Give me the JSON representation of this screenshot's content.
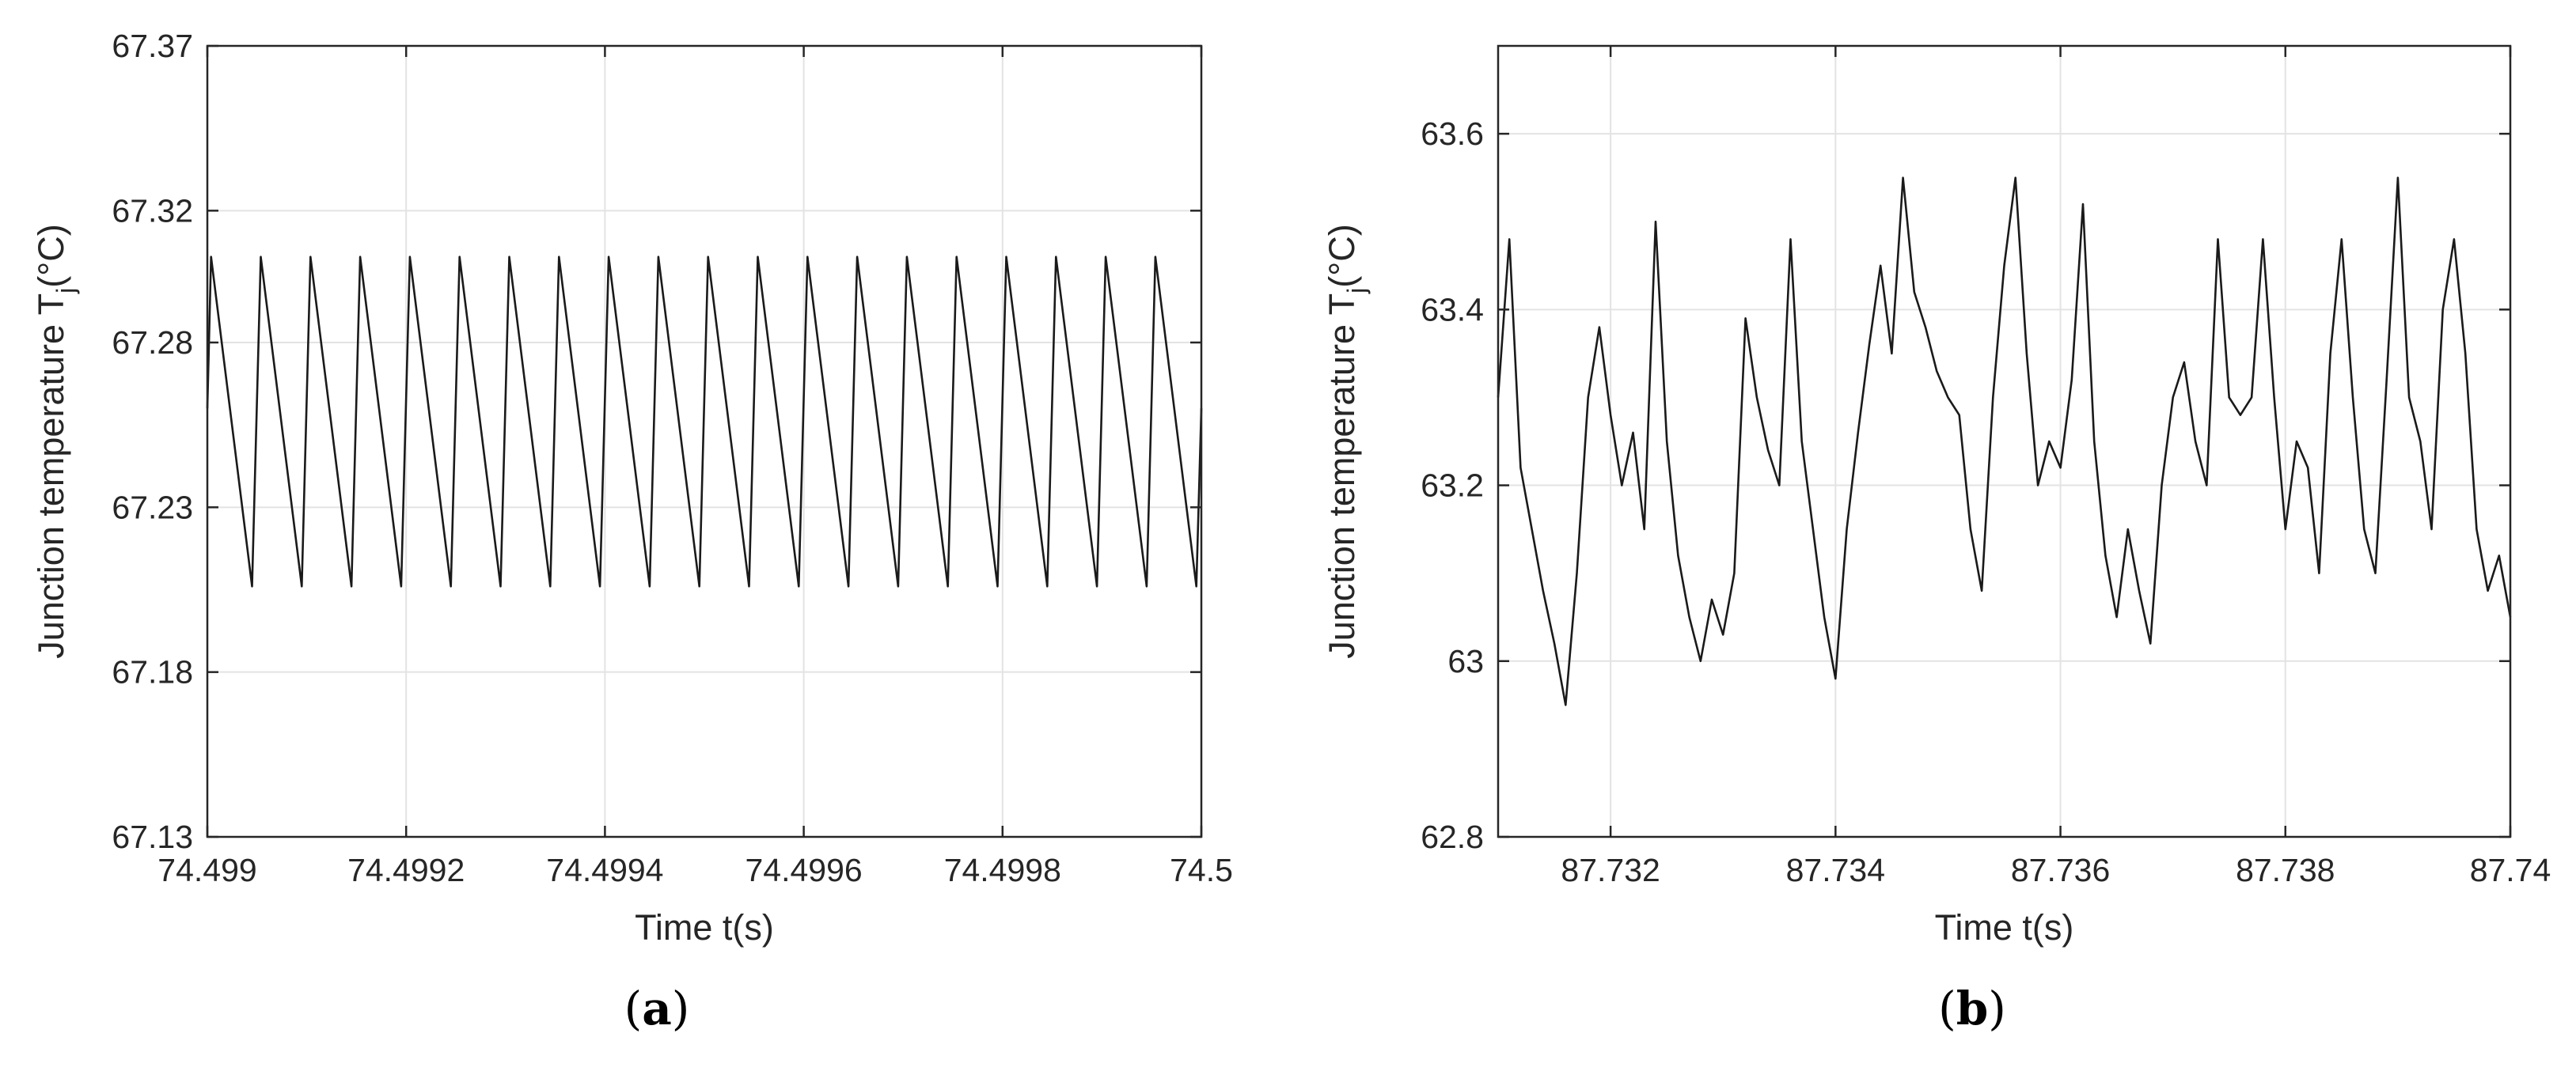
{
  "colors": {
    "line": "#1a1a1a",
    "grid": "#e3e3e3",
    "axis": "#262626",
    "background": "#ffffff"
  },
  "chart_data": [
    {
      "type": "line",
      "panel_label": "a",
      "title": "",
      "xlabel": "Time t(s)",
      "ylabel": {
        "main": "Junction temperature T",
        "sub": "j",
        "unit": "(°C)"
      },
      "xlim": [
        74.499,
        74.5
      ],
      "ylim": [
        67.13,
        67.37
      ],
      "xticks": [
        74.499,
        74.4992,
        74.4994,
        74.4996,
        74.4998,
        74.5
      ],
      "xtick_labels": [
        "74.499",
        "74.4992",
        "74.4994",
        "74.4996",
        "74.4998",
        "74.5"
      ],
      "yticks": [
        67.13,
        67.18,
        67.23,
        67.28,
        67.32,
        67.37
      ],
      "ytick_labels": [
        "67.13",
        "67.18",
        "67.23",
        "67.28",
        "67.32",
        "67.37"
      ],
      "grid": true,
      "series": [
        {
          "style": "sawtooth",
          "x": [
            74.499,
            74.49900375,
            74.499045,
            74.49905375,
            74.499095,
            74.49910375,
            74.499145,
            74.49915375,
            74.499195,
            74.49920375,
            74.499245,
            74.49925375,
            74.499295,
            74.49930375,
            74.499345,
            74.49935375,
            74.499395,
            74.49940375,
            74.499445,
            74.49945375,
            74.499495,
            74.49950375,
            74.499545,
            74.49955375,
            74.499595,
            74.49960375,
            74.499645,
            74.49965375,
            74.499695,
            74.49970375,
            74.499745,
            74.49975375,
            74.499795,
            74.49980375,
            74.499845,
            74.49985375,
            74.499895,
            74.49990375,
            74.499945,
            74.49995375,
            74.499995,
            74.5
          ],
          "y": [
            67.26,
            67.306,
            67.206,
            67.306,
            67.206,
            67.306,
            67.206,
            67.306,
            67.206,
            67.306,
            67.206,
            67.306,
            67.206,
            67.306,
            67.206,
            67.306,
            67.206,
            67.306,
            67.206,
            67.306,
            67.206,
            67.306,
            67.206,
            67.306,
            67.206,
            67.306,
            67.206,
            67.306,
            67.206,
            67.306,
            67.206,
            67.306,
            67.206,
            67.306,
            67.206,
            67.306,
            67.206,
            67.306,
            67.206,
            67.306,
            67.206,
            67.26
          ]
        }
      ]
    },
    {
      "type": "line",
      "panel_label": "b",
      "title": "",
      "xlabel": "Time t(s)",
      "ylabel": {
        "main": "Junction temperature T",
        "sub": "j",
        "unit": "(°C)"
      },
      "xlim": [
        87.731,
        87.74
      ],
      "ylim": [
        62.8,
        63.7
      ],
      "xticks": [
        87.732,
        87.734,
        87.736,
        87.738,
        87.74
      ],
      "xtick_labels": [
        "87.732",
        "87.734",
        "87.736",
        "87.738",
        "87.74"
      ],
      "yticks": [
        62.8,
        63.0,
        63.2,
        63.4,
        63.6
      ],
      "ytick_labels": [
        "62.8",
        "63",
        "63.2",
        "63.4",
        "63.6"
      ],
      "grid": true,
      "series": [
        {
          "style": "noisy",
          "x": [
            87.731,
            87.7311,
            87.7312,
            87.7313,
            87.7314,
            87.7315,
            87.7316,
            87.7317,
            87.7318,
            87.7319,
            87.732,
            87.7321,
            87.7322,
            87.7323,
            87.7324,
            87.7325,
            87.7326,
            87.7327,
            87.7328,
            87.7329,
            87.733,
            87.7331,
            87.7332,
            87.7333,
            87.7334,
            87.7335,
            87.7336,
            87.7337,
            87.7338,
            87.7339,
            87.734,
            87.7341,
            87.7342,
            87.7343,
            87.7344,
            87.7345,
            87.7346,
            87.7347,
            87.7348,
            87.7349,
            87.735,
            87.7351,
            87.7352,
            87.7353,
            87.7354,
            87.7355,
            87.7356,
            87.7357,
            87.7358,
            87.7359,
            87.736,
            87.7361,
            87.7362,
            87.7363,
            87.7364,
            87.7365,
            87.7366,
            87.7367,
            87.7368,
            87.7369,
            87.737,
            87.7371,
            87.7372,
            87.7373,
            87.7374,
            87.7375,
            87.7376,
            87.7377,
            87.7378,
            87.7379,
            87.738,
            87.7381,
            87.7382,
            87.7383,
            87.7384,
            87.7385,
            87.7386,
            87.7387,
            87.7388,
            87.7389,
            87.739,
            87.7391,
            87.7392,
            87.7393,
            87.7394,
            87.7395,
            87.7396,
            87.7397,
            87.7398,
            87.7399,
            87.74
          ],
          "y": [
            63.3,
            63.48,
            63.22,
            63.15,
            63.08,
            63.02,
            62.95,
            63.1,
            63.3,
            63.38,
            63.28,
            63.2,
            63.26,
            63.15,
            63.5,
            63.25,
            63.12,
            63.05,
            63.0,
            63.07,
            63.03,
            63.1,
            63.39,
            63.3,
            63.24,
            63.2,
            63.48,
            63.25,
            63.15,
            63.05,
            62.98,
            63.15,
            63.26,
            63.36,
            63.45,
            63.35,
            63.55,
            63.42,
            63.38,
            63.33,
            63.3,
            63.28,
            63.15,
            63.08,
            63.3,
            63.45,
            63.55,
            63.35,
            63.2,
            63.25,
            63.22,
            63.32,
            63.52,
            63.25,
            63.12,
            63.05,
            63.15,
            63.08,
            63.02,
            63.2,
            63.3,
            63.34,
            63.25,
            63.2,
            63.48,
            63.3,
            63.28,
            63.3,
            63.48,
            63.3,
            63.15,
            63.25,
            63.22,
            63.1,
            63.35,
            63.48,
            63.3,
            63.15,
            63.1,
            63.32,
            63.55,
            63.3,
            63.25,
            63.15,
            63.4,
            63.48,
            63.35,
            63.15,
            63.08,
            63.12,
            63.05
          ]
        }
      ]
    }
  ]
}
